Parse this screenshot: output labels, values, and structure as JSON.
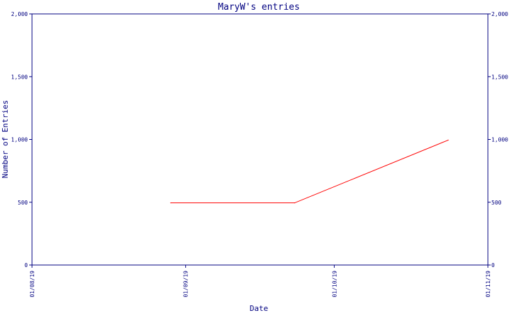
{
  "chart_data": {
    "type": "line",
    "title": "MaryW's entries",
    "xlabel": "Date",
    "ylabel": "Number of Entries",
    "x_tick_labels": [
      "01/08/19",
      "01/09/19",
      "01/10/19",
      "01/11/19"
    ],
    "xlim": [
      "2019-08-01",
      "2019-11-01"
    ],
    "x_ticks": [
      "2019-08-01",
      "2019-09-01",
      "2019-10-01",
      "2019-11-01"
    ],
    "y_tick_labels": [
      "0",
      "500",
      "1,000",
      "1,500",
      "2,000"
    ],
    "y_ticks": [
      0,
      500,
      1000,
      1500,
      2000
    ],
    "ylim": [
      0,
      2000
    ],
    "grid": false,
    "series": [
      {
        "color": "#ff0000",
        "x": [
          "2019-08-29",
          "2019-09-23",
          "2019-10-24"
        ],
        "y": [
          495,
          495,
          995
        ]
      }
    ],
    "axis_color": "#000080"
  }
}
